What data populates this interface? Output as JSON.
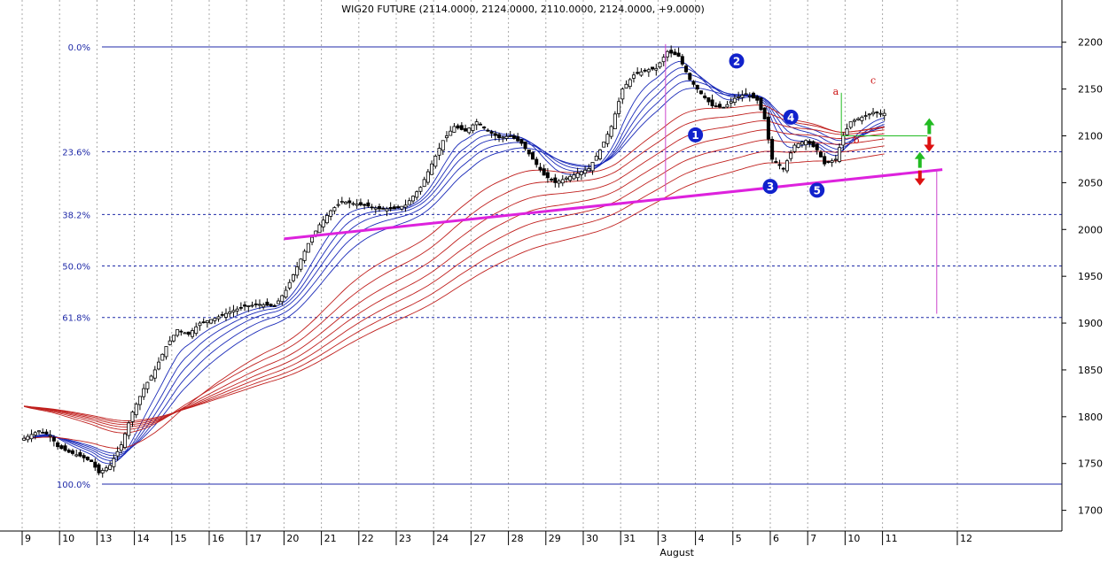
{
  "chart_data": {
    "type": "candlestick",
    "title": "WIG20 FUTURE (2114.0000, 2124.0000, 2110.0000, 2124.0000, +9.0000)",
    "ylim": [
      1675,
      2225
    ],
    "y_ticks": [
      1700,
      1750,
      1800,
      1850,
      1900,
      1950,
      2000,
      2050,
      2100,
      2150,
      2200
    ],
    "x_ticks": [
      {
        "label": "9",
        "day": 0
      },
      {
        "label": "10",
        "day": 1
      },
      {
        "label": "13",
        "day": 2
      },
      {
        "label": "14",
        "day": 3
      },
      {
        "label": "15",
        "day": 4
      },
      {
        "label": "16",
        "day": 5
      },
      {
        "label": "17",
        "day": 6
      },
      {
        "label": "20",
        "day": 7
      },
      {
        "label": "21",
        "day": 8
      },
      {
        "label": "22",
        "day": 9
      },
      {
        "label": "23",
        "day": 10
      },
      {
        "label": "24",
        "day": 11
      },
      {
        "label": "27",
        "day": 12
      },
      {
        "label": "28",
        "day": 13
      },
      {
        "label": "29",
        "day": 14
      },
      {
        "label": "30",
        "day": 15
      },
      {
        "label": "31",
        "day": 16
      },
      {
        "label": "3",
        "day": 17
      },
      {
        "label": "4",
        "day": 18
      },
      {
        "label": "5",
        "day": 19
      },
      {
        "label": "6",
        "day": 20
      },
      {
        "label": "7",
        "day": 21
      },
      {
        "label": "10",
        "day": 22
      },
      {
        "label": "11",
        "day": 23
      },
      {
        "label": "12",
        "day": 25
      }
    ],
    "month_label": {
      "text": "August",
      "day": 17
    },
    "fib_levels": [
      {
        "label": "0.0%",
        "value": 2195,
        "style": "solid"
      },
      {
        "label": "23.6%",
        "value": 2083,
        "style": "dashed"
      },
      {
        "label": "38.2%",
        "value": 2016,
        "style": "dashed"
      },
      {
        "label": "50.0%",
        "value": 1961,
        "style": "dashed"
      },
      {
        "label": "61.8%",
        "value": 1906,
        "style": "dashed"
      },
      {
        "label": "100.0%",
        "value": 1728,
        "style": "solid"
      }
    ],
    "price_path": [
      [
        0,
        1775
      ],
      [
        0.5,
        1785
      ],
      [
        0.8,
        1780
      ],
      [
        1.0,
        1768
      ],
      [
        1.3,
        1762
      ],
      [
        1.6,
        1758
      ],
      [
        1.9,
        1752
      ],
      [
        2.1,
        1740
      ],
      [
        2.4,
        1748
      ],
      [
        2.7,
        1770
      ],
      [
        3.0,
        1805
      ],
      [
        3.3,
        1830
      ],
      [
        3.6,
        1850
      ],
      [
        3.9,
        1875
      ],
      [
        4.2,
        1893
      ],
      [
        4.5,
        1888
      ],
      [
        4.8,
        1900
      ],
      [
        5.2,
        1905
      ],
      [
        5.6,
        1912
      ],
      [
        6.0,
        1918
      ],
      [
        6.4,
        1920
      ],
      [
        6.8,
        1918
      ],
      [
        7.1,
        1935
      ],
      [
        7.4,
        1960
      ],
      [
        7.7,
        1985
      ],
      [
        8.0,
        2005
      ],
      [
        8.3,
        2020
      ],
      [
        8.6,
        2030
      ],
      [
        9.0,
        2027
      ],
      [
        9.3,
        2025
      ],
      [
        9.6,
        2022
      ],
      [
        10.0,
        2022
      ],
      [
        10.3,
        2026
      ],
      [
        10.7,
        2045
      ],
      [
        11.0,
        2070
      ],
      [
        11.3,
        2095
      ],
      [
        11.6,
        2110
      ],
      [
        11.9,
        2105
      ],
      [
        12.2,
        2115
      ],
      [
        12.5,
        2105
      ],
      [
        12.8,
        2098
      ],
      [
        13.1,
        2100
      ],
      [
        13.4,
        2092
      ],
      [
        13.7,
        2075
      ],
      [
        14.0,
        2058
      ],
      [
        14.3,
        2050
      ],
      [
        14.6,
        2055
      ],
      [
        14.9,
        2060
      ],
      [
        15.2,
        2065
      ],
      [
        15.5,
        2085
      ],
      [
        15.8,
        2110
      ],
      [
        16.1,
        2150
      ],
      [
        16.4,
        2165
      ],
      [
        16.7,
        2170
      ],
      [
        17.0,
        2172
      ],
      [
        17.3,
        2190
      ],
      [
        17.6,
        2185
      ],
      [
        17.9,
        2160
      ],
      [
        18.2,
        2145
      ],
      [
        18.5,
        2132
      ],
      [
        18.8,
        2130
      ],
      [
        19.1,
        2140
      ],
      [
        19.4,
        2145
      ],
      [
        19.7,
        2138
      ],
      [
        19.9,
        2118
      ],
      [
        20.1,
        2075
      ],
      [
        20.4,
        2065
      ],
      [
        20.7,
        2090
      ],
      [
        21.0,
        2095
      ],
      [
        21.3,
        2085
      ],
      [
        21.5,
        2070
      ],
      [
        21.8,
        2075
      ],
      [
        22.0,
        2100
      ],
      [
        22.2,
        2115
      ],
      [
        22.5,
        2120
      ],
      [
        22.8,
        2125
      ],
      [
        23.0,
        2124
      ]
    ],
    "annotations": {
      "wave_markers": [
        {
          "label": "1",
          "day": 18.0,
          "value": 2101
        },
        {
          "label": "2",
          "day": 19.1,
          "value": 2180
        },
        {
          "label": "3",
          "day": 20.0,
          "value": 2046
        },
        {
          "label": "4",
          "day": 20.55,
          "value": 2120
        },
        {
          "label": "5",
          "day": 21.25,
          "value": 2042
        }
      ],
      "abc_labels": [
        {
          "label": "a",
          "day": 21.75,
          "value": 2144
        },
        {
          "label": "b",
          "day": 22.3,
          "value": 2092
        },
        {
          "label": "c",
          "day": 22.75,
          "value": 2156
        }
      ],
      "trendline": {
        "from": [
          7.0,
          1990
        ],
        "to": [
          24.6,
          2064
        ],
        "color": "#dd22dd"
      },
      "neckline": {
        "from": [
          21.9,
          2100
        ],
        "to": [
          24.2,
          2100
        ],
        "color": "#22bb22"
      },
      "target_line": {
        "day": 24.45,
        "from": 2063,
        "to": 1910,
        "color": "#cc44cc"
      },
      "top_line": {
        "day": 17.2,
        "from": 2198,
        "to": 2040,
        "color": "#cc44cc"
      }
    },
    "grid": true,
    "colors": {
      "fib": "#1f2aa8",
      "axis": "#000000",
      "short_ma": "#1a2ab8",
      "long_ma": "#c0201e",
      "candle": "#000000",
      "trend": "#dd22dd",
      "marker": "#1122cc",
      "up_arrow": "#22bb22",
      "down_arrow": "#dd1111"
    }
  }
}
